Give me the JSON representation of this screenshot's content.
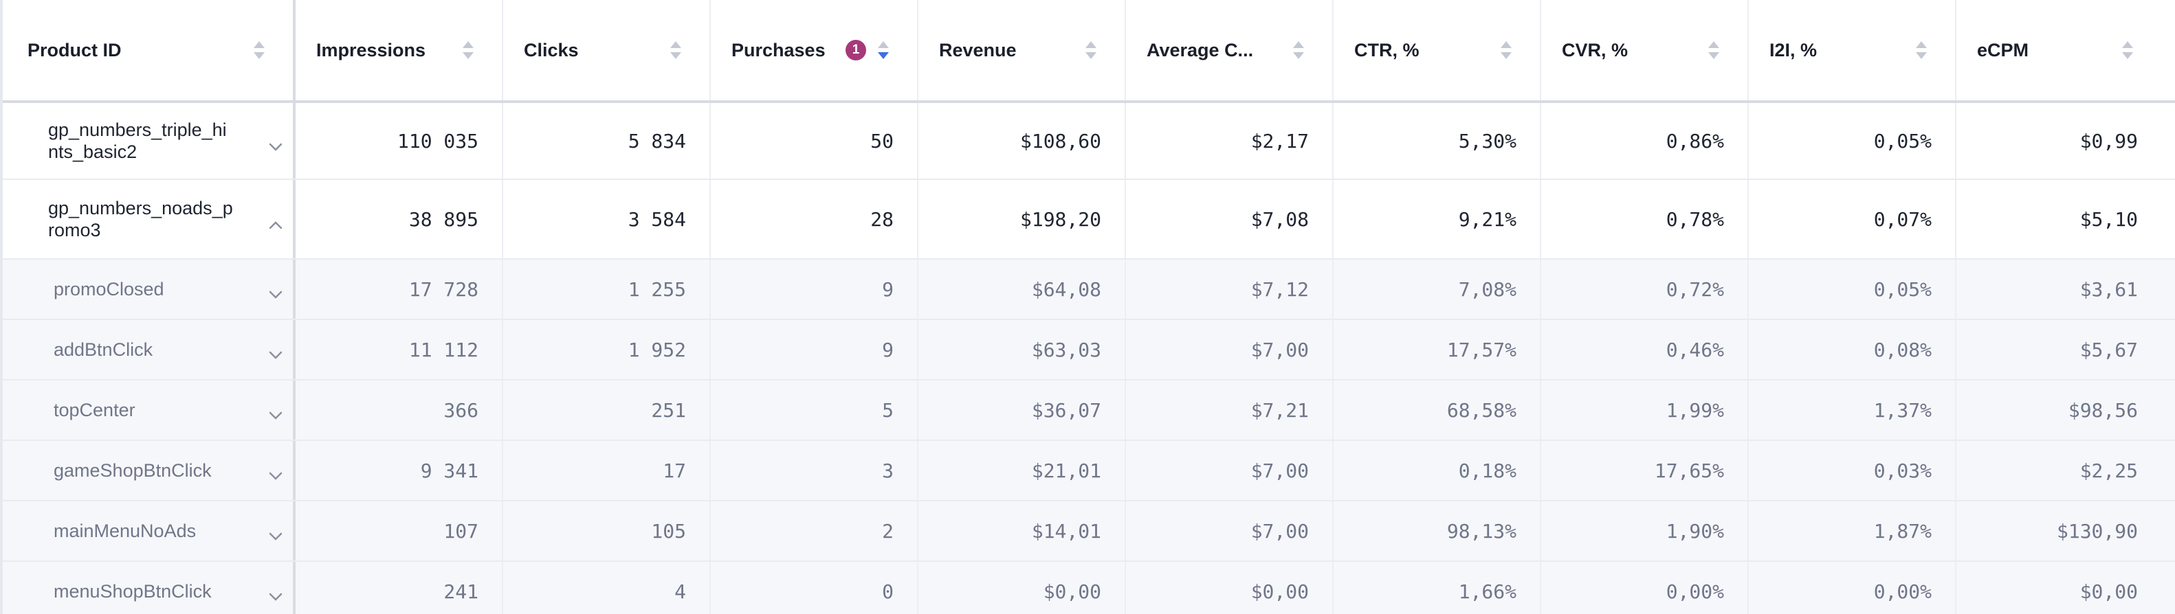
{
  "columns": [
    {
      "key": "product_id",
      "label": "Product ID"
    },
    {
      "key": "impressions",
      "label": "Impressions"
    },
    {
      "key": "clicks",
      "label": "Clicks"
    },
    {
      "key": "purchases",
      "label": "Purchases",
      "badge": "1",
      "sorted": "desc"
    },
    {
      "key": "revenue",
      "label": "Revenue"
    },
    {
      "key": "average_check",
      "label": "Average C..."
    },
    {
      "key": "ctr",
      "label": "CTR, %"
    },
    {
      "key": "cvr",
      "label": "CVR, %"
    },
    {
      "key": "i2i",
      "label": "I2I, %"
    },
    {
      "key": "ecpm",
      "label": "eCPM"
    }
  ],
  "colors": {
    "sort_active": "#3d6fe0",
    "sort_inactive": "#c4c8d3",
    "badge": "#a63a79"
  },
  "rows": [
    {
      "name": "gp_numbers_triple_hints_basic2",
      "name_lines": [
        "gp_numbers_triple_hi",
        "nts_basic2"
      ],
      "expanded": false,
      "impressions": "110 035",
      "clicks": "5 834",
      "purchases": "50",
      "revenue": "$108,60",
      "average_check": "$2,17",
      "ctr": "5,30%",
      "cvr": "0,86%",
      "i2i": "0,05%",
      "ecpm": "$0,99"
    },
    {
      "name": "gp_numbers_noads_promo3",
      "name_lines": [
        "gp_numbers_noads_p",
        "romo3"
      ],
      "expanded": true,
      "impressions": "38 895",
      "clicks": "3 584",
      "purchases": "28",
      "revenue": "$198,20",
      "average_check": "$7,08",
      "ctr": "9,21%",
      "cvr": "0,78%",
      "i2i": "0,07%",
      "ecpm": "$5,10"
    }
  ],
  "sub_rows": [
    {
      "name": "promoClosed",
      "impressions": "17 728",
      "clicks": "1 255",
      "purchases": "9",
      "revenue": "$64,08",
      "average_check": "$7,12",
      "ctr": "7,08%",
      "cvr": "0,72%",
      "i2i": "0,05%",
      "ecpm": "$3,61"
    },
    {
      "name": "addBtnClick",
      "impressions": "11 112",
      "clicks": "1 952",
      "purchases": "9",
      "revenue": "$63,03",
      "average_check": "$7,00",
      "ctr": "17,57%",
      "cvr": "0,46%",
      "i2i": "0,08%",
      "ecpm": "$5,67"
    },
    {
      "name": "topCenter",
      "impressions": "366",
      "clicks": "251",
      "purchases": "5",
      "revenue": "$36,07",
      "average_check": "$7,21",
      "ctr": "68,58%",
      "cvr": "1,99%",
      "i2i": "1,37%",
      "ecpm": "$98,56"
    },
    {
      "name": "gameShopBtnClick",
      "impressions": "9 341",
      "clicks": "17",
      "purchases": "3",
      "revenue": "$21,01",
      "average_check": "$7,00",
      "ctr": "0,18%",
      "cvr": "17,65%",
      "i2i": "0,03%",
      "ecpm": "$2,25"
    },
    {
      "name": "mainMenuNoAds",
      "impressions": "107",
      "clicks": "105",
      "purchases": "2",
      "revenue": "$14,01",
      "average_check": "$7,00",
      "ctr": "98,13%",
      "cvr": "1,90%",
      "i2i": "1,87%",
      "ecpm": "$130,90"
    },
    {
      "name": "menuShopBtnClick",
      "impressions": "241",
      "clicks": "4",
      "purchases": "0",
      "revenue": "$0,00",
      "average_check": "$0,00",
      "ctr": "1,66%",
      "cvr": "0,00%",
      "i2i": "0,00%",
      "ecpm": "$0,00"
    }
  ]
}
